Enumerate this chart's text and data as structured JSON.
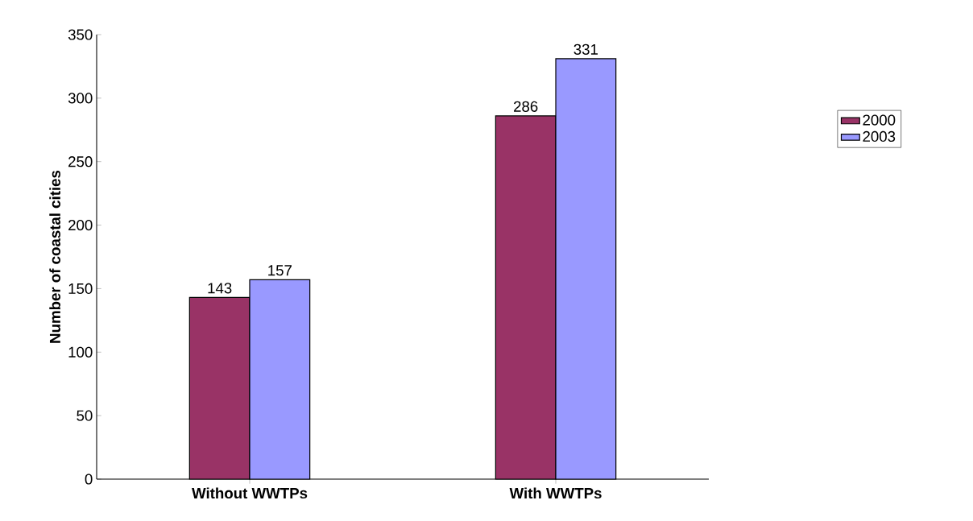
{
  "chart_data": {
    "type": "bar",
    "ylabel": "Number of coastal cities",
    "categories": [
      "Without WWTPs",
      "With WWTPs"
    ],
    "series": [
      {
        "name": "2000",
        "color": "#993366",
        "values": [
          143,
          286
        ]
      },
      {
        "name": "2003",
        "color": "#9999ff",
        "values": [
          157,
          331
        ]
      }
    ],
    "ylim": [
      0,
      350
    ],
    "yticks": [
      0,
      50,
      100,
      150,
      200,
      250,
      300,
      350
    ],
    "data_labels": true,
    "legend": "right",
    "grid": false
  }
}
